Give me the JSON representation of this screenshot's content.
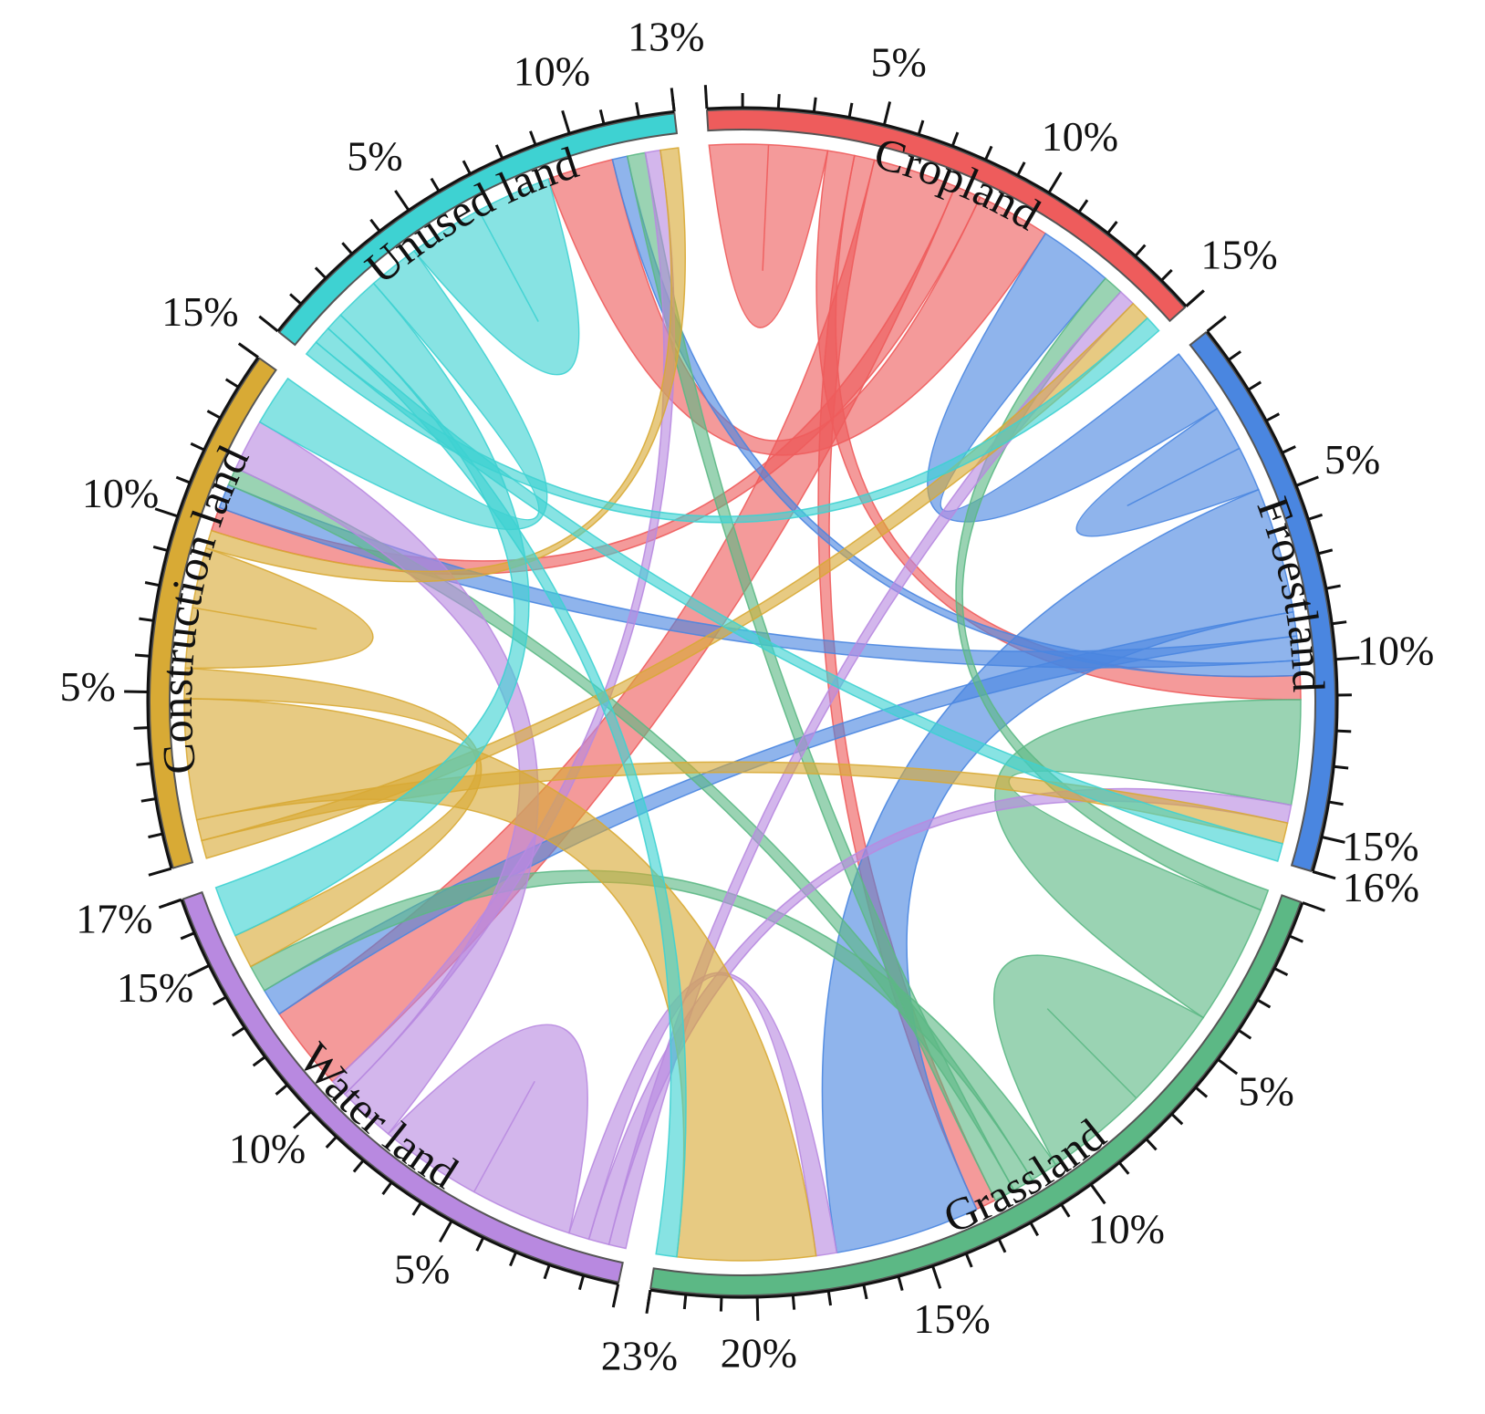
{
  "chart_data": {
    "type": "chord",
    "title": "",
    "segments": [
      {
        "name": "Cropland",
        "color": "#ee5c5c",
        "total": 15,
        "tick_labels": [
          "5%",
          "10%",
          "15%"
        ]
      },
      {
        "name": "Froestland",
        "color": "#4a86e0",
        "total": 16,
        "tick_labels": [
          "5%",
          "10%",
          "15%",
          "16%"
        ]
      },
      {
        "name": "Grassland",
        "color": "#5cb885",
        "total": 23,
        "tick_labels": [
          "5%",
          "10%",
          "15%",
          "20%",
          "23%"
        ]
      },
      {
        "name": "Water land",
        "color": "#b889e0",
        "total": 17,
        "tick_labels": [
          "5%",
          "10%",
          "15%",
          "17%"
        ]
      },
      {
        "name": "Construction land",
        "color": "#d8aa35",
        "total": 15,
        "tick_labels": [
          "5%",
          "10%",
          "15%"
        ]
      },
      {
        "name": "Unused land",
        "color": "#3ed2d2",
        "total": 13,
        "tick_labels": [
          "5%",
          "10%",
          "13%"
        ]
      }
    ],
    "flows": [
      {
        "from": "Cropland",
        "to": "Cropland",
        "value": 3.5
      },
      {
        "from": "Cropland",
        "to": "Froestland",
        "value": 0.8
      },
      {
        "from": "Cropland",
        "to": "Grassland",
        "value": 0.6
      },
      {
        "from": "Cropland",
        "to": "Water land",
        "value": 2.5
      },
      {
        "from": "Cropland",
        "to": "Construction land",
        "value": 0.8
      },
      {
        "from": "Cropland",
        "to": "Unused land",
        "value": 2.2
      },
      {
        "from": "Froestland",
        "to": "Cropland",
        "value": 2.2
      },
      {
        "from": "Froestland",
        "to": "Froestland",
        "value": 3.0
      },
      {
        "from": "Froestland",
        "to": "Grassland",
        "value": 4.2
      },
      {
        "from": "Froestland",
        "to": "Water land",
        "value": 0.8
      },
      {
        "from": "Froestland",
        "to": "Construction land",
        "value": 0.8
      },
      {
        "from": "Froestland",
        "to": "Unused land",
        "value": 0.5
      },
      {
        "from": "Grassland",
        "to": "Cropland",
        "value": 0.6
      },
      {
        "from": "Grassland",
        "to": "Froestland",
        "value": 3.5
      },
      {
        "from": "Grassland",
        "to": "Grassland",
        "value": 6.0
      },
      {
        "from": "Grassland",
        "to": "Water land",
        "value": 0.8
      },
      {
        "from": "Grassland",
        "to": "Construction land",
        "value": 0.6
      },
      {
        "from": "Grassland",
        "to": "Unused land",
        "value": 0.6
      },
      {
        "from": "Water land",
        "to": "Cropland",
        "value": 0.5
      },
      {
        "from": "Water land",
        "to": "Froestland",
        "value": 0.6
      },
      {
        "from": "Water land",
        "to": "Grassland",
        "value": 0.6
      },
      {
        "from": "Water land",
        "to": "Water land",
        "value": 6.0
      },
      {
        "from": "Water land",
        "to": "Construction land",
        "value": 1.7
      },
      {
        "from": "Water land",
        "to": "Unused land",
        "value": 0.5
      },
      {
        "from": "Construction land",
        "to": "Cropland",
        "value": 0.6
      },
      {
        "from": "Construction land",
        "to": "Froestland",
        "value": 0.7
      },
      {
        "from": "Construction land",
        "to": "Grassland",
        "value": 4.0
      },
      {
        "from": "Construction land",
        "to": "Water land",
        "value": 1.0
      },
      {
        "from": "Construction land",
        "to": "Construction land",
        "value": 4.0
      },
      {
        "from": "Construction land",
        "to": "Unused land",
        "value": 0.6
      },
      {
        "from": "Unused land",
        "to": "Cropland",
        "value": 0.5
      },
      {
        "from": "Unused land",
        "to": "Froestland",
        "value": 0.6
      },
      {
        "from": "Unused land",
        "to": "Grassland",
        "value": 0.6
      },
      {
        "from": "Unused land",
        "to": "Water land",
        "value": 1.5
      },
      {
        "from": "Unused land",
        "to": "Construction land",
        "value": 1.7
      },
      {
        "from": "Unused land",
        "to": "Unused land",
        "value": 5.0
      }
    ]
  }
}
